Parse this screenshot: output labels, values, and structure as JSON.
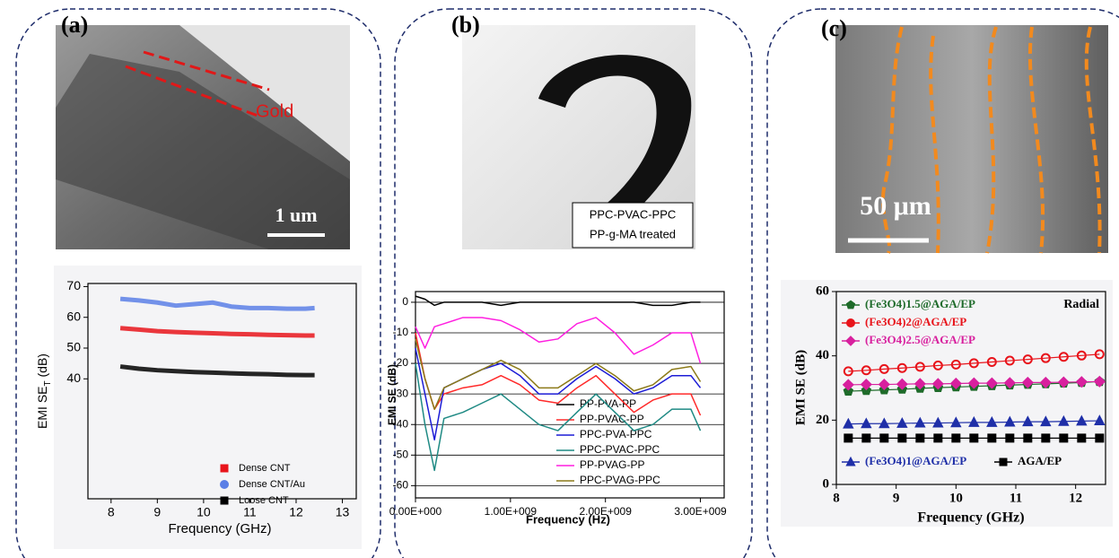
{
  "chart_data": [
    {
      "type": "line",
      "panel_label": "(a)",
      "annotations": [
        "Gold",
        "1 um"
      ],
      "xlabel": "Frequency (GHz)",
      "ylabel": [
        "EMI SE",
        "T",
        " (dB)"
      ],
      "x": [
        8.2,
        8.6,
        9.0,
        9.4,
        9.8,
        10.2,
        10.6,
        11.0,
        11.4,
        11.8,
        12.2,
        12.4
      ],
      "xlim": [
        7.5,
        13.3
      ],
      "xticks": [
        8,
        9,
        10,
        11,
        12,
        13
      ],
      "ylim": [
        1,
        71
      ],
      "yticks": [
        40,
        50,
        60,
        70
      ],
      "grid": false,
      "legend": "lower right",
      "series": [
        {
          "name": "Dense CNT",
          "color": "#e8141b",
          "marker": "square",
          "values": [
            56.5,
            56,
            55.5,
            55.2,
            55,
            54.8,
            54.6,
            54.5,
            54.3,
            54.2,
            54.1,
            54.1
          ]
        },
        {
          "name": "Dense CNT/Au",
          "color": "#5b7fe6",
          "marker": "circle",
          "values": [
            66,
            65.5,
            64.8,
            63.8,
            64.3,
            64.8,
            63.5,
            63,
            63,
            62.8,
            62.8,
            63
          ]
        },
        {
          "name": "Loose CNT",
          "color": "#000000",
          "marker": "square",
          "values": [
            44,
            43.3,
            42.8,
            42.5,
            42.2,
            42,
            41.8,
            41.6,
            41.5,
            41.3,
            41.2,
            41.2
          ]
        }
      ]
    },
    {
      "type": "line",
      "panel_label": "(b)",
      "annotations": [
        "PPC-PVAC-PPC",
        "PP-g-MA treated"
      ],
      "xlabel": "Frequency (Hz)",
      "ylabel": "EMI SE (dB)",
      "x": [
        0,
        100000000,
        200000000,
        300000000,
        500000000,
        700000000,
        900000000,
        1100000000,
        1300000000,
        1500000000,
        1700000000,
        1900000000,
        2100000000,
        2300000000,
        2500000000,
        2700000000,
        2900000000,
        3000000000
      ],
      "xlim": [
        0,
        3250000000
      ],
      "xticks": [
        {
          "value": 0,
          "label": "0.00E+000"
        },
        {
          "value": 1000000000,
          "label": "1.00E+009"
        },
        {
          "value": 2000000000,
          "label": "2.00E+009"
        },
        {
          "value": 3000000000,
          "label": "3.00E+009"
        }
      ],
      "ylim": [
        -64,
        3.5
      ],
      "yticks": [
        0,
        -10,
        -20,
        -30,
        -40,
        -50,
        -60
      ],
      "grid": true,
      "legend": "center right",
      "series": [
        {
          "name": "PP-PVA-PP",
          "color": "#000000",
          "values": [
            2,
            1,
            -1,
            0,
            0,
            0,
            -1,
            0,
            0,
            0,
            0,
            0,
            0,
            0,
            -1,
            -1,
            0,
            0
          ]
        },
        {
          "name": "PP-PVAC-PP",
          "color": "#ff2a2a",
          "values": [
            -10,
            -25,
            -35,
            -30,
            -28,
            -27,
            -24,
            -27,
            -32,
            -33,
            -28,
            -24,
            -30,
            -36,
            -32,
            -30,
            -30,
            -37
          ]
        },
        {
          "name": "PPC-PVA-PPC",
          "color": "#1c1cd6",
          "values": [
            -15,
            -30,
            -45,
            -28,
            -25,
            -22,
            -20,
            -24,
            -30,
            -30,
            -25,
            -21,
            -25,
            -30,
            -28,
            -24,
            -24,
            -28
          ]
        },
        {
          "name": "PPC-PVAC-PPC",
          "color": "#1f8a84",
          "values": [
            -20,
            -40,
            -55,
            -38,
            -36,
            -33,
            -30,
            -35,
            -40,
            -42,
            -36,
            -30,
            -36,
            -42,
            -40,
            -35,
            -35,
            -42
          ]
        },
        {
          "name": "PP-PVAG-PP",
          "color": "#ff1fe0",
          "values": [
            -8,
            -15,
            -8,
            -7,
            -5,
            -5,
            -6,
            -9,
            -13,
            -12,
            -7,
            -5,
            -10,
            -17,
            -14,
            -10,
            -10,
            -20
          ]
        },
        {
          "name": "PPC-PVAG-PPC",
          "color": "#8c7a18",
          "values": [
            -12,
            -25,
            -35,
            -28,
            -25,
            -22,
            -19,
            -22,
            -28,
            -28,
            -24,
            -20,
            -24,
            -29,
            -27,
            -22,
            -21,
            -26
          ]
        }
      ]
    },
    {
      "type": "line",
      "panel_label": "(c)",
      "annotations": [
        "50 μm",
        "Radial"
      ],
      "xlabel": "Frequency (GHz)",
      "ylabel": "EMI SE (dB)",
      "x": [
        8.2,
        8.5,
        8.8,
        9.1,
        9.4,
        9.7,
        10,
        10.3,
        10.6,
        10.9,
        11.2,
        11.5,
        11.8,
        12.1,
        12.4
      ],
      "xlim": [
        8,
        12.5
      ],
      "xticks": [
        8,
        9,
        10,
        11,
        12
      ],
      "ylim": [
        0,
        60
      ],
      "yticks": [
        0,
        20,
        40,
        60
      ],
      "grid": false,
      "legend": "upper left",
      "series": [
        {
          "name": "(Fe3O4)1.5@AGA/EP",
          "color": "#1e6b2a",
          "marker": "pentagon",
          "values": [
            29,
            29.2,
            29.4,
            29.6,
            29.9,
            30.1,
            30.3,
            30.5,
            30.7,
            30.9,
            31.1,
            31.3,
            31.5,
            31.7,
            32
          ]
        },
        {
          "name": "(Fe3O4)2@AGA/EP",
          "color": "#e8141b",
          "marker": "circle",
          "values": [
            35.2,
            35.5,
            35.9,
            36.2,
            36.6,
            37,
            37.3,
            37.7,
            38.1,
            38.5,
            38.9,
            39.3,
            39.7,
            40.1,
            40.5
          ]
        },
        {
          "name": "(Fe3O4)2.5@AGA/EP",
          "color": "#d8209e",
          "marker": "diamond",
          "values": [
            31,
            31.1,
            31.1,
            31.2,
            31.3,
            31.3,
            31.4,
            31.5,
            31.5,
            31.6,
            31.7,
            31.7,
            31.8,
            31.9,
            32
          ]
        },
        {
          "name": "(Fe3O4)1@AGA/EP",
          "color": "#1f2fa8",
          "marker": "triangle",
          "values": [
            18.8,
            18.9,
            18.9,
            19,
            19.1,
            19.1,
            19.2,
            19.3,
            19.3,
            19.4,
            19.5,
            19.5,
            19.6,
            19.7,
            19.8
          ]
        },
        {
          "name": "AGA/EP",
          "color": "#000000",
          "marker": "square",
          "values": [
            14.4,
            14.4,
            14.4,
            14.4,
            14.4,
            14.4,
            14.4,
            14.4,
            14.4,
            14.4,
            14.4,
            14.4,
            14.4,
            14.4,
            14.4
          ]
        }
      ]
    }
  ]
}
